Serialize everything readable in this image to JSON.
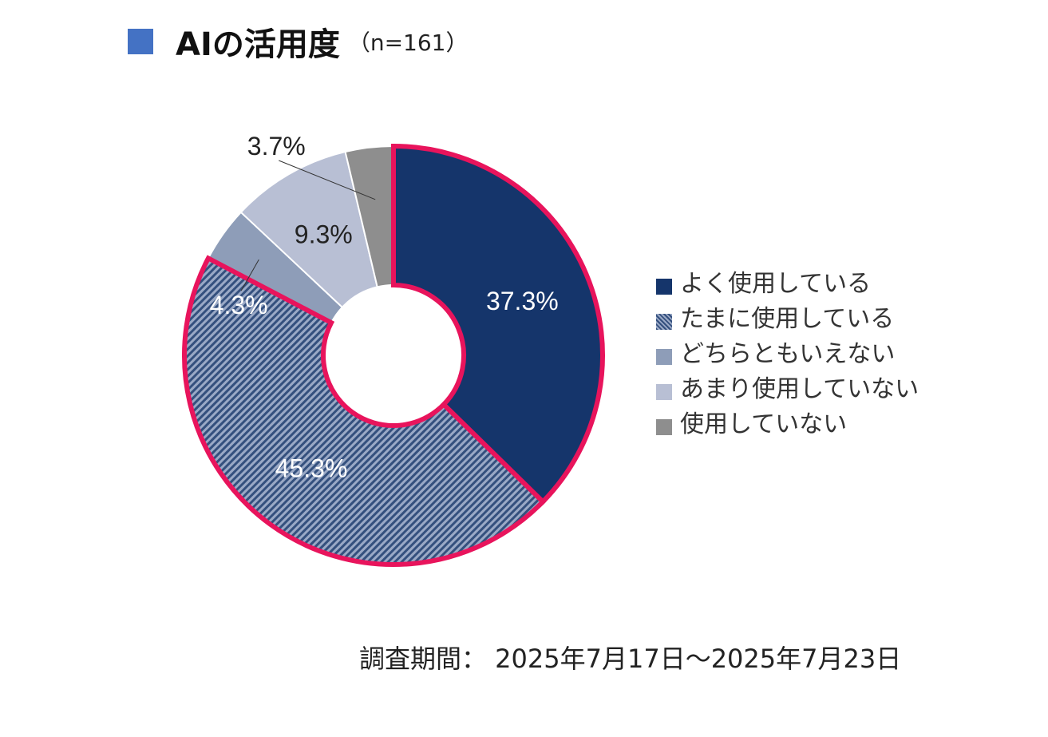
{
  "title": {
    "main": "AIの活用度",
    "sample": "（n=161）",
    "marker_color": "#4472c4"
  },
  "chart_data": {
    "type": "pie",
    "variant": "donut",
    "title": "AIの活用度",
    "categories": [
      "よく使用している",
      "たまに使用している",
      "どちらともいえない",
      "あまり使用していない",
      "使用していない"
    ],
    "values": [
      37.3,
      45.3,
      4.3,
      9.3,
      3.7
    ],
    "labels": [
      "37.3%",
      "45.3%",
      "4.3%",
      "9.3%",
      "3.7%"
    ],
    "colors": [
      "#15356b",
      "#8ea0c0",
      "#8e9db8",
      "#b8bfd4",
      "#8e8e8e"
    ],
    "pattern": [
      false,
      true,
      false,
      false,
      false
    ],
    "highlighted": [
      true,
      true,
      false,
      false,
      false
    ],
    "highlight_color": "#e8145c",
    "legend_position": "right",
    "start_angle": "12 o'clock",
    "direction": "clockwise"
  },
  "legend": {
    "items": [
      {
        "label": "よく使用している",
        "color": "#15356b",
        "pattern": false
      },
      {
        "label": "たまに使用している",
        "color": "#8ea0c0",
        "pattern": true
      },
      {
        "label": "どちらともいえない",
        "color": "#8e9db8",
        "pattern": false
      },
      {
        "label": "あまり使用していない",
        "color": "#b8bfd4",
        "pattern": false
      },
      {
        "label": "使用していない",
        "color": "#8e8e8e",
        "pattern": false
      }
    ]
  },
  "footer": {
    "period": "調査期間： 2025年7月17日～2025年7月23日"
  }
}
